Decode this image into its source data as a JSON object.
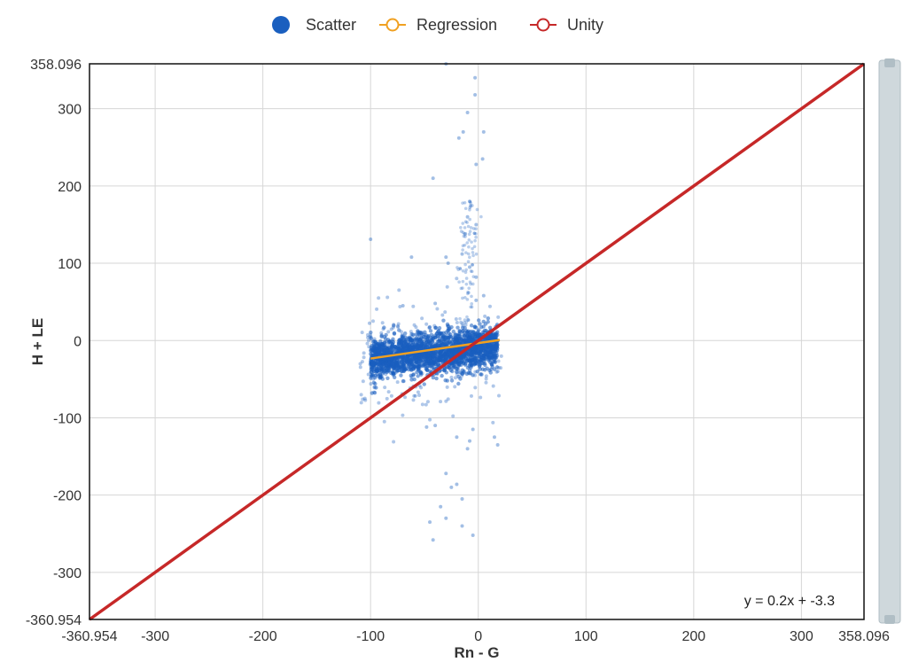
{
  "legend": {
    "items": [
      {
        "label": "Scatter",
        "color": "#1a5fbf"
      },
      {
        "label": "Regression",
        "color": "#f0a020"
      },
      {
        "label": "Unity",
        "color": "#c62828"
      }
    ]
  },
  "chart_data": {
    "type": "scatter",
    "xlabel": "Rn - G",
    "ylabel": "H + LE",
    "xlim": [
      -360.954,
      358.096
    ],
    "ylim": [
      -360.954,
      358.096
    ],
    "x_ticks": [
      "-360.954",
      "-300",
      "-200",
      "-100",
      "0",
      "100",
      "200",
      "300",
      "358.096"
    ],
    "x_tick_values": [
      -360.954,
      -300,
      -200,
      -100,
      0,
      100,
      200,
      300,
      358.096
    ],
    "y_ticks": [
      "358.096",
      "300",
      "200",
      "100",
      "0",
      "-100",
      "-200",
      "-300",
      "-360.954"
    ],
    "y_tick_values": [
      358.096,
      300,
      200,
      100,
      0,
      -100,
      -200,
      -300,
      -360.954
    ],
    "grid": true,
    "legend_position": "top-center",
    "equation": "y = 0.2x + -3.3",
    "series": [
      {
        "name": "Scatter",
        "color": "#1a5fbf",
        "points": [
          [
            -30,
            358
          ],
          [
            -3,
            340
          ],
          [
            -3,
            318
          ],
          [
            -10,
            295
          ],
          [
            5,
            270
          ],
          [
            -18,
            262
          ],
          [
            -14,
            270
          ],
          [
            4,
            235
          ],
          [
            -2,
            228
          ],
          [
            -42,
            210
          ],
          [
            -8,
            180
          ],
          [
            -10,
            160
          ],
          [
            -2,
            150
          ],
          [
            -12,
            138
          ],
          [
            -100,
            131
          ],
          [
            -15,
            112
          ],
          [
            -30,
            108
          ],
          [
            -62,
            108
          ],
          [
            -28,
            100
          ],
          [
            -8,
            95
          ],
          [
            -2,
            82
          ],
          [
            5,
            58
          ],
          [
            -2,
            52
          ],
          [
            -40,
            48
          ],
          [
            -70,
            45
          ],
          [
            -40,
            -110
          ],
          [
            -48,
            -112
          ],
          [
            -5,
            -115
          ],
          [
            -8,
            -130
          ],
          [
            -20,
            -125
          ],
          [
            -10,
            -140
          ],
          [
            18,
            -135
          ],
          [
            15,
            -125
          ],
          [
            -30,
            -172
          ],
          [
            -20,
            -186
          ],
          [
            -25,
            -190
          ],
          [
            -15,
            -205
          ],
          [
            -35,
            -215
          ],
          [
            -45,
            -235
          ],
          [
            -30,
            -230
          ],
          [
            -15,
            -240
          ],
          [
            -5,
            -252
          ],
          [
            -42,
            -258
          ]
        ],
        "cluster": {
          "x_range": [
            -100,
            18
          ],
          "y_range": [
            -68,
            30
          ],
          "center_y": -16
        }
      },
      {
        "name": "Regression",
        "color": "#f0a020",
        "line": [
          [
            -100,
            -23.3
          ],
          [
            20,
            0.7
          ]
        ]
      },
      {
        "name": "Unity",
        "color": "#c62828",
        "line": [
          [
            -360.954,
            -360.954
          ],
          [
            358.096,
            358.096
          ]
        ]
      }
    ]
  }
}
